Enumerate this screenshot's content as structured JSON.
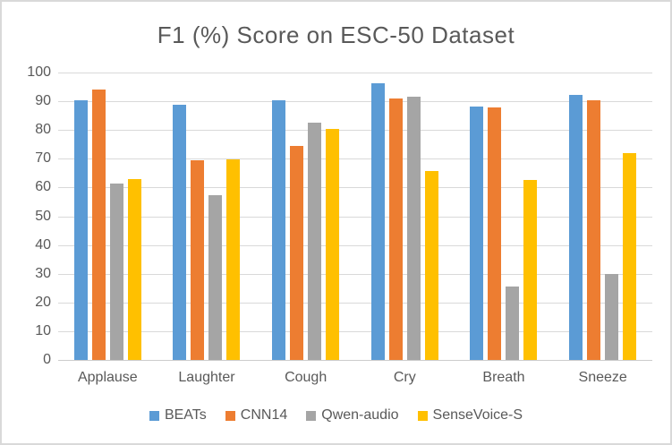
{
  "chart_data": {
    "type": "bar",
    "title": "F1 (%) Score on ESC-50 Dataset",
    "categories": [
      "Applause",
      "Laughter",
      "Cough",
      "Cry",
      "Breath",
      "Sneeze"
    ],
    "series": [
      {
        "name": "BEATs",
        "color": "#5B9BD5",
        "values": [
          90.4,
          88.8,
          90.5,
          96.4,
          88.2,
          92.1
        ]
      },
      {
        "name": "CNN14",
        "color": "#ED7D31",
        "values": [
          94.0,
          69.4,
          74.4,
          91.1,
          88.0,
          90.4
        ]
      },
      {
        "name": "Qwen-audio",
        "color": "#A5A5A5",
        "values": [
          61.5,
          57.2,
          82.7,
          91.7,
          25.5,
          29.9
        ]
      },
      {
        "name": "SenseVoice-S",
        "color": "#FFC000",
        "values": [
          62.8,
          69.7,
          80.5,
          65.6,
          62.5,
          71.9
        ]
      }
    ],
    "xlabel": "",
    "ylabel": "",
    "ylim": [
      0,
      100
    ],
    "ytick_step": 10,
    "ytick_labels": [
      "0",
      "10",
      "20",
      "30",
      "40",
      "50",
      "60",
      "70",
      "80",
      "90",
      "100"
    ],
    "grid": "horizontal",
    "legend_position": "bottom"
  },
  "styles": {
    "background_color": "#FFFFFF",
    "border_color": "#D9D9D9",
    "gridline_color": "#D9D9D9",
    "text_color": "#595959"
  }
}
